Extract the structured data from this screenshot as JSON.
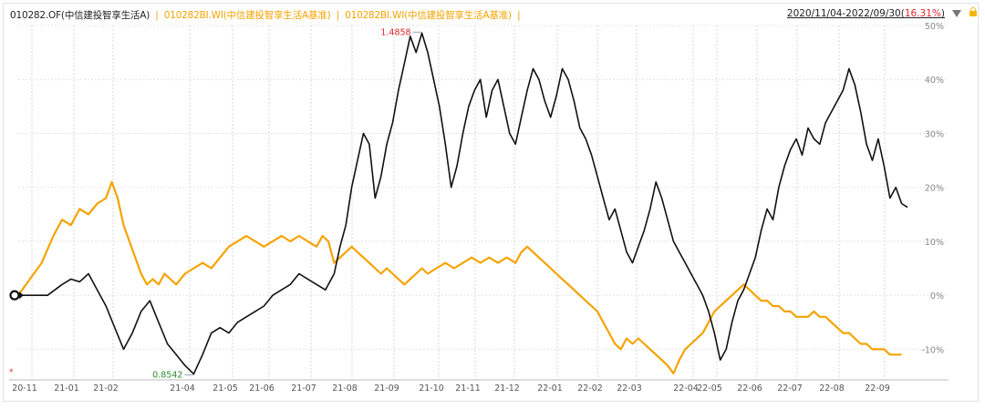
{
  "header": {
    "series1_label": "010282.OF(中信建投智享生活A)",
    "separator": "|",
    "series2_label": "010282BI.WI(中信建投智享生活A基准)",
    "series3_label": "010282BI.WI(中信建投智享生活A基准)",
    "trailing_separator": "|",
    "range_text": "2020/11/04-2022/09/30(",
    "range_pct": "16.31%",
    "range_close": ")"
  },
  "icons": {
    "dropdown": "triangle-down-icon",
    "lock": "lock-icon"
  },
  "chart_data": {
    "type": "line",
    "title": "",
    "xlabel": "",
    "ylabel": "",
    "x_ticks": [
      "20-11",
      "21-01",
      "21-02",
      "21-04",
      "21-05",
      "21-06",
      "21-07",
      "21-08",
      "21-09",
      "21-10",
      "21-11",
      "21-12",
      "22-01",
      "22-02",
      "22-03",
      "22-04",
      "22-05",
      "22-06",
      "22-07",
      "22-08",
      "22-09"
    ],
    "y_ticks": [
      "50%",
      "40%",
      "30%",
      "20%",
      "10%",
      "0%",
      "-10%"
    ],
    "ylim": [
      -15,
      50
    ],
    "grid": true,
    "annotations": [
      {
        "label": "1.4858",
        "x": 138,
        "y": 48.6,
        "color": "#e0252d"
      },
      {
        "label": "0.8542",
        "x": 60,
        "y": -14.6,
        "color": "#2e8b2e"
      }
    ],
    "series": [
      {
        "color": "#111111",
        "values": [
          [
            0,
            0
          ],
          [
            5,
            0
          ],
          [
            10,
            0
          ],
          [
            15,
            2
          ],
          [
            18,
            3
          ],
          [
            21,
            2.5
          ],
          [
            24,
            4
          ],
          [
            27,
            1
          ],
          [
            30,
            -2
          ],
          [
            33,
            -6
          ],
          [
            36,
            -10
          ],
          [
            39,
            -7
          ],
          [
            42,
            -3
          ],
          [
            45,
            -1
          ],
          [
            48,
            -5
          ],
          [
            51,
            -9
          ],
          [
            54,
            -11
          ],
          [
            57,
            -13
          ],
          [
            60,
            -14.6
          ],
          [
            63,
            -11
          ],
          [
            66,
            -7
          ],
          [
            69,
            -6
          ],
          [
            72,
            -7
          ],
          [
            75,
            -5
          ],
          [
            78,
            -4
          ],
          [
            81,
            -3
          ],
          [
            84,
            -2
          ],
          [
            87,
            0
          ],
          [
            90,
            1
          ],
          [
            93,
            2
          ],
          [
            96,
            4
          ],
          [
            99,
            3
          ],
          [
            102,
            2
          ],
          [
            105,
            1
          ],
          [
            108,
            4
          ],
          [
            110,
            9
          ],
          [
            112,
            13
          ],
          [
            114,
            20
          ],
          [
            116,
            25
          ],
          [
            118,
            30
          ],
          [
            120,
            28
          ],
          [
            122,
            18
          ],
          [
            124,
            22
          ],
          [
            126,
            28
          ],
          [
            128,
            32
          ],
          [
            130,
            38
          ],
          [
            132,
            43
          ],
          [
            134,
            48
          ],
          [
            136,
            45
          ],
          [
            138,
            48.6
          ],
          [
            140,
            45
          ],
          [
            142,
            40
          ],
          [
            144,
            35
          ],
          [
            146,
            28
          ],
          [
            148,
            20
          ],
          [
            150,
            24
          ],
          [
            152,
            30
          ],
          [
            154,
            35
          ],
          [
            156,
            38
          ],
          [
            158,
            40
          ],
          [
            160,
            33
          ],
          [
            162,
            38
          ],
          [
            164,
            40
          ],
          [
            166,
            35
          ],
          [
            168,
            30
          ],
          [
            170,
            28
          ],
          [
            172,
            33
          ],
          [
            174,
            38
          ],
          [
            176,
            42
          ],
          [
            178,
            40
          ],
          [
            180,
            36
          ],
          [
            182,
            33
          ],
          [
            184,
            37
          ],
          [
            186,
            42
          ],
          [
            188,
            40
          ],
          [
            190,
            36
          ],
          [
            192,
            31
          ],
          [
            194,
            29
          ],
          [
            196,
            26
          ],
          [
            198,
            22
          ],
          [
            200,
            18
          ],
          [
            202,
            14
          ],
          [
            204,
            16
          ],
          [
            206,
            12
          ],
          [
            208,
            8
          ],
          [
            210,
            6
          ],
          [
            212,
            9
          ],
          [
            214,
            12
          ],
          [
            216,
            16
          ],
          [
            218,
            21
          ],
          [
            220,
            18
          ],
          [
            222,
            14
          ],
          [
            224,
            10
          ],
          [
            226,
            8
          ],
          [
            228,
            6
          ],
          [
            230,
            4
          ],
          [
            232,
            2
          ],
          [
            234,
            0
          ],
          [
            236,
            -3
          ],
          [
            238,
            -7
          ],
          [
            240,
            -12
          ],
          [
            242,
            -10
          ],
          [
            244,
            -5
          ],
          [
            246,
            -1
          ],
          [
            248,
            1
          ],
          [
            250,
            4
          ],
          [
            252,
            7
          ],
          [
            254,
            12
          ],
          [
            256,
            16
          ],
          [
            258,
            14
          ],
          [
            260,
            20
          ],
          [
            262,
            24
          ],
          [
            264,
            27
          ],
          [
            266,
            29
          ],
          [
            268,
            26
          ],
          [
            270,
            31
          ],
          [
            272,
            29
          ],
          [
            274,
            28
          ],
          [
            276,
            32
          ],
          [
            278,
            34
          ],
          [
            280,
            36
          ],
          [
            282,
            38
          ],
          [
            284,
            42
          ],
          [
            286,
            39
          ],
          [
            288,
            34
          ],
          [
            290,
            28
          ],
          [
            292,
            25
          ],
          [
            294,
            29
          ],
          [
            296,
            24
          ],
          [
            298,
            18
          ],
          [
            300,
            20
          ],
          [
            302,
            17
          ],
          [
            304,
            16.3
          ]
        ]
      },
      {
        "color": "#f5a300",
        "values": [
          [
            0,
            0
          ],
          [
            4,
            3
          ],
          [
            8,
            6
          ],
          [
            12,
            11
          ],
          [
            15,
            14
          ],
          [
            18,
            13
          ],
          [
            21,
            16
          ],
          [
            24,
            15
          ],
          [
            27,
            17
          ],
          [
            30,
            18
          ],
          [
            32,
            21
          ],
          [
            34,
            18
          ],
          [
            36,
            13
          ],
          [
            38,
            10
          ],
          [
            40,
            7
          ],
          [
            42,
            4
          ],
          [
            44,
            2
          ],
          [
            46,
            3
          ],
          [
            48,
            2
          ],
          [
            50,
            4
          ],
          [
            52,
            3
          ],
          [
            54,
            2
          ],
          [
            57,
            4
          ],
          [
            60,
            5
          ],
          [
            63,
            6
          ],
          [
            66,
            5
          ],
          [
            69,
            7
          ],
          [
            72,
            9
          ],
          [
            75,
            10
          ],
          [
            78,
            11
          ],
          [
            81,
            10
          ],
          [
            84,
            9
          ],
          [
            87,
            10
          ],
          [
            90,
            11
          ],
          [
            93,
            10
          ],
          [
            96,
            11
          ],
          [
            99,
            10
          ],
          [
            102,
            9
          ],
          [
            104,
            11
          ],
          [
            106,
            10
          ],
          [
            108,
            6
          ],
          [
            110,
            7
          ],
          [
            112,
            8
          ],
          [
            114,
            9
          ],
          [
            116,
            8
          ],
          [
            118,
            7
          ],
          [
            120,
            6
          ],
          [
            122,
            5
          ],
          [
            124,
            4
          ],
          [
            126,
            5
          ],
          [
            128,
            4
          ],
          [
            130,
            3
          ],
          [
            132,
            2
          ],
          [
            134,
            3
          ],
          [
            136,
            4
          ],
          [
            138,
            5
          ],
          [
            140,
            4
          ],
          [
            143,
            5
          ],
          [
            146,
            6
          ],
          [
            149,
            5
          ],
          [
            152,
            6
          ],
          [
            155,
            7
          ],
          [
            158,
            6
          ],
          [
            161,
            7
          ],
          [
            164,
            6
          ],
          [
            167,
            7
          ],
          [
            170,
            6
          ],
          [
            172,
            8
          ],
          [
            174,
            9
          ],
          [
            176,
            8
          ],
          [
            178,
            7
          ],
          [
            180,
            6
          ],
          [
            182,
            5
          ],
          [
            184,
            4
          ],
          [
            186,
            3
          ],
          [
            188,
            2
          ],
          [
            190,
            1
          ],
          [
            192,
            0
          ],
          [
            194,
            -1
          ],
          [
            196,
            -2
          ],
          [
            198,
            -3
          ],
          [
            200,
            -5
          ],
          [
            202,
            -7
          ],
          [
            204,
            -9
          ],
          [
            206,
            -10
          ],
          [
            208,
            -8
          ],
          [
            210,
            -9
          ],
          [
            212,
            -8
          ],
          [
            214,
            -9
          ],
          [
            216,
            -10
          ],
          [
            218,
            -11
          ],
          [
            220,
            -12
          ],
          [
            222,
            -13
          ],
          [
            224,
            -14.5
          ],
          [
            226,
            -12
          ],
          [
            228,
            -10
          ],
          [
            230,
            -9
          ],
          [
            232,
            -8
          ],
          [
            234,
            -7
          ],
          [
            236,
            -5
          ],
          [
            238,
            -3
          ],
          [
            240,
            -2
          ],
          [
            242,
            -1
          ],
          [
            244,
            0
          ],
          [
            246,
            1
          ],
          [
            248,
            2
          ],
          [
            250,
            1
          ],
          [
            252,
            0
          ],
          [
            254,
            -1
          ],
          [
            256,
            -1
          ],
          [
            258,
            -2
          ],
          [
            260,
            -2
          ],
          [
            262,
            -3
          ],
          [
            264,
            -3
          ],
          [
            266,
            -4
          ],
          [
            268,
            -4
          ],
          [
            270,
            -4
          ],
          [
            272,
            -3
          ],
          [
            274,
            -4
          ],
          [
            276,
            -4
          ],
          [
            278,
            -5
          ],
          [
            280,
            -6
          ],
          [
            282,
            -7
          ],
          [
            284,
            -7
          ],
          [
            286,
            -8
          ],
          [
            288,
            -9
          ],
          [
            290,
            -9
          ],
          [
            292,
            -10
          ],
          [
            294,
            -10
          ],
          [
            296,
            -10
          ],
          [
            298,
            -11
          ],
          [
            300,
            -11
          ],
          [
            302,
            -11
          ]
        ]
      }
    ]
  }
}
